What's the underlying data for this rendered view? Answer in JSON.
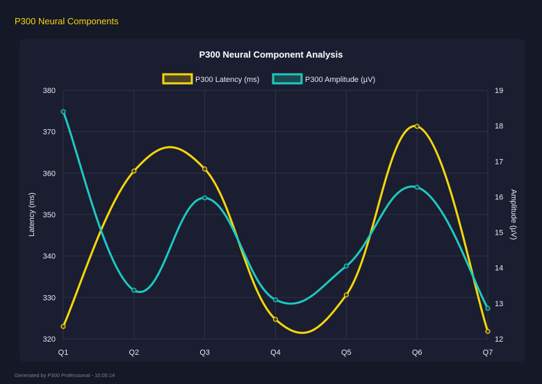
{
  "header": {
    "title": "P300 Neural Components"
  },
  "footer": {
    "text": "Generated by P300 Professional - 10:05:14"
  },
  "chart_data": {
    "type": "line",
    "title": "P300 Neural Component Analysis",
    "categories": [
      "Q1",
      "Q2",
      "Q3",
      "Q4",
      "Q5",
      "Q6",
      "Q7"
    ],
    "series": [
      {
        "name": "P300 Latency (ms)",
        "axis": "left",
        "color": "#f5d60a",
        "values": [
          323,
          360.5,
          361,
          324.7,
          330.6,
          371.3,
          321.8
        ]
      },
      {
        "name": "P300 Amplitude (µV)",
        "axis": "right",
        "color": "#1ec8c0",
        "values": [
          18.4,
          13.37,
          15.97,
          13.1,
          14.05,
          16.27,
          12.86
        ]
      }
    ],
    "ylabel": "Latency (ms)",
    "ylim": [
      320,
      380
    ],
    "yticks": [
      320,
      330,
      340,
      350,
      360,
      370,
      380
    ],
    "y2label": "Amplitude (µV)",
    "y2lim": [
      12,
      19
    ],
    "y2ticks": [
      12,
      13,
      14,
      15,
      16,
      17,
      18,
      19
    ],
    "grid": true,
    "legend": "top"
  }
}
